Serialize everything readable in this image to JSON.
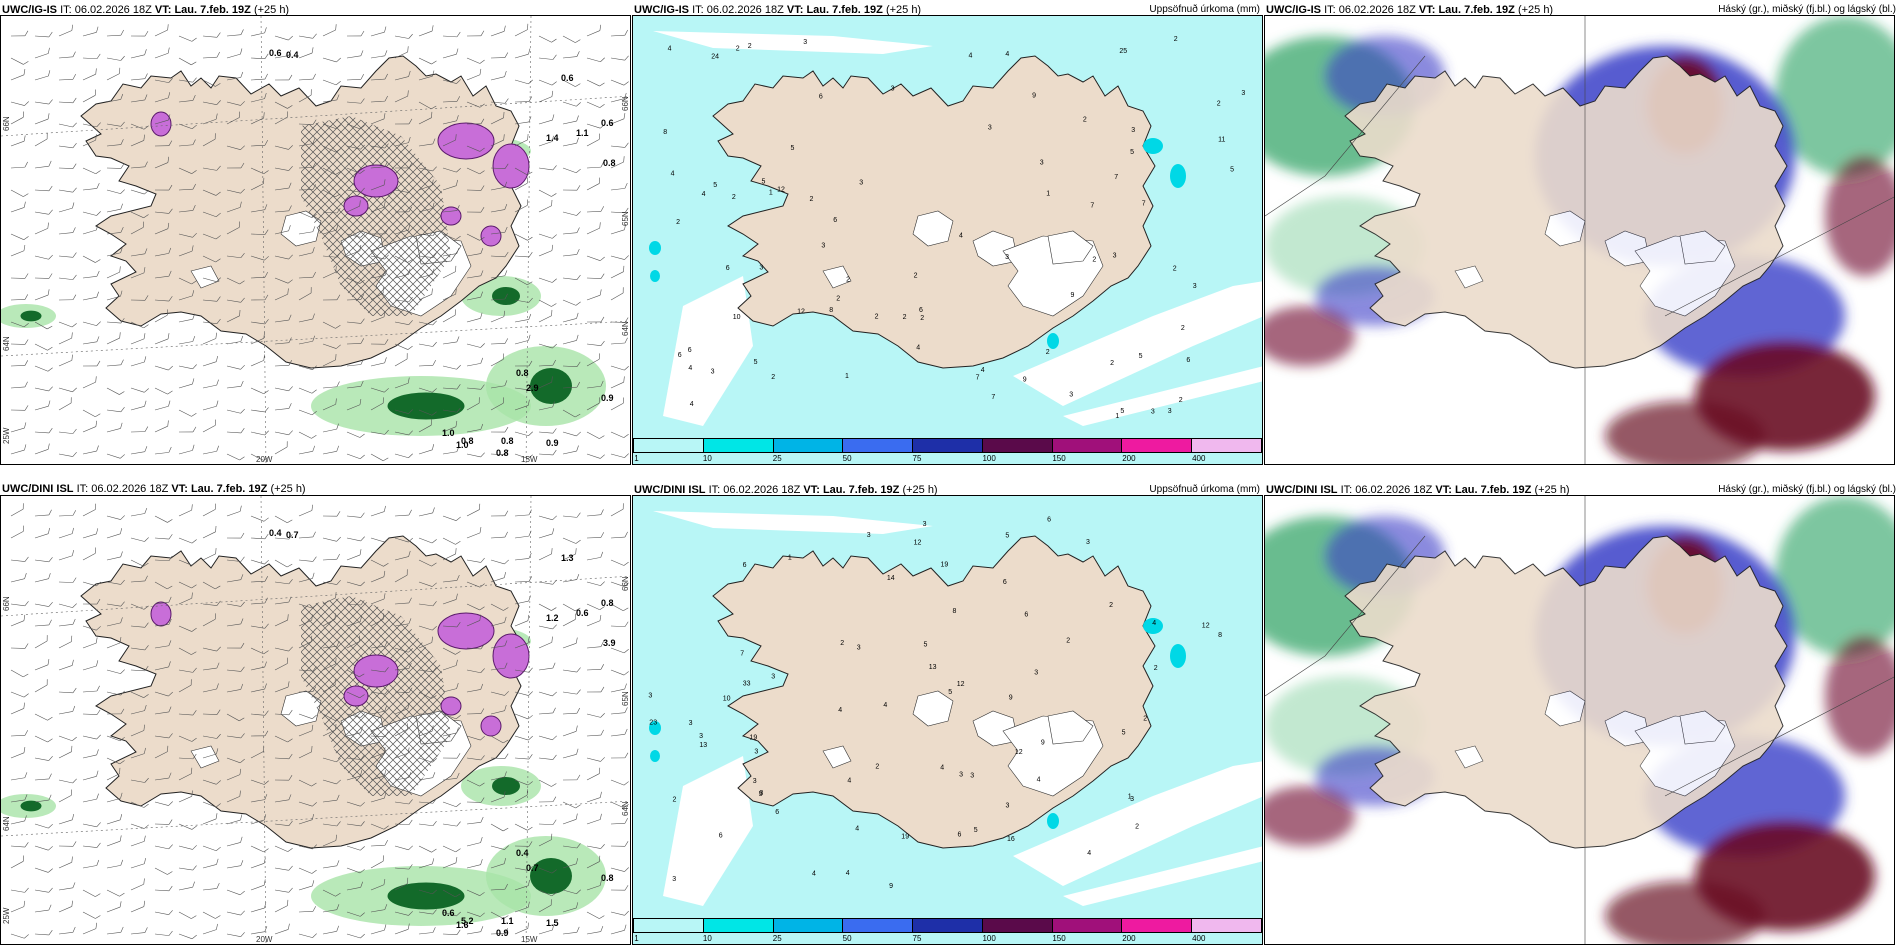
{
  "rows": [
    {
      "panels": [
        {
          "kind": "wind",
          "model": "UWC/IG-IS",
          "it_label": "IT:",
          "it_value": "06.02.2026 18Z",
          "vt_label": "VT:",
          "vt_value": "Lau. 7.feb. 19Z",
          "lead": "(+25 h)",
          "right_title": "",
          "axis": {
            "lon": [
              "20W",
              "15W"
            ],
            "lat": [
              "66N",
              "65N",
              "64N"
            ],
            "lat_left": [
              "66N",
              "64N",
              "25W"
            ]
          },
          "values": [
            "0.6",
            "0.6",
            "1.1",
            "0.8",
            "0.9",
            "1.0",
            "0.8",
            "1.0",
            "0.8",
            "0.8",
            "0.9",
            "2.9",
            "0.4",
            "0.6",
            "1.4",
            "0.8"
          ]
        },
        {
          "kind": "precip",
          "model": "UWC/IG-IS",
          "it_label": "IT:",
          "it_value": "06.02.2026 18Z",
          "vt_label": "VT:",
          "vt_value": "Lau. 7.feb. 19Z",
          "lead": "(+25 h)",
          "right_title": "Uppsöfnuð úrkoma (mm)",
          "values": [
            "2",
            "1",
            "2",
            "3",
            "3",
            "6",
            "2",
            "3",
            "8",
            "7",
            "7",
            "4",
            "4",
            "5",
            "6",
            "2",
            "4",
            "5",
            "2",
            "3",
            "3",
            "12",
            "9",
            "12",
            "5",
            "1",
            "7",
            "6",
            "3",
            "6",
            "2",
            "2",
            "3",
            "2",
            "2",
            "4",
            "5",
            "2",
            "3",
            "1",
            "2",
            "2",
            "2",
            "3",
            "2",
            "4",
            "6",
            "5",
            "3",
            "9",
            "7",
            "7",
            "3",
            "25",
            "11",
            "3",
            "2",
            "24",
            "10",
            "5",
            "4",
            "3",
            "8",
            "2",
            "2",
            "4",
            "2",
            "3",
            "9",
            "2",
            "6",
            "5",
            "4",
            "5",
            "6",
            "4",
            "3",
            "2",
            "3",
            "1",
            "2",
            "4"
          ]
        },
        {
          "kind": "cloud",
          "model": "UWC/IG-IS",
          "it_label": "IT:",
          "it_value": "06.02.2026 18Z",
          "vt_label": "VT:",
          "vt_value": "Lau. 7.feb. 19Z",
          "lead": "(+25 h)",
          "right_title": "Háský (gr.), miðský (fj.bl.) og lágský (bl.)"
        }
      ]
    },
    {
      "panels": [
        {
          "kind": "wind",
          "model": "UWC/DINI ISL",
          "it_label": "IT:",
          "it_value": "06.02.2026 18Z",
          "vt_label": "VT:",
          "vt_value": "Lau. 7.feb. 19Z",
          "lead": "(+25 h)",
          "right_title": "",
          "axis": {
            "lon": [
              "20W",
              "15W"
            ],
            "lat": [
              "66N",
              "65N",
              "64N"
            ],
            "lat_left": [
              "66N",
              "64N",
              "25W"
            ]
          },
          "values": [
            "0.4",
            "1.3",
            "0.6",
            "3.9",
            "0.8",
            "0.6",
            "5.2",
            "1.6",
            "0.9",
            "1.1",
            "1.5",
            "0.7",
            "0.7",
            "0.8",
            "1.2",
            "0.4"
          ]
        },
        {
          "kind": "precip",
          "model": "UWC/DINI ISL",
          "it_label": "IT:",
          "it_value": "06.02.2026 18Z",
          "vt_label": "VT:",
          "vt_value": "Lau. 7.feb. 19Z",
          "lead": "(+25 h)",
          "right_title": "Uppsöfnuð úrkoma (mm)",
          "values": [
            "6",
            "3",
            "1",
            "2",
            "3",
            "3",
            "3",
            "3",
            "4",
            "2",
            "3",
            "3",
            "4",
            "5",
            "9",
            "3",
            "2",
            "3",
            "5",
            "4",
            "16",
            "12",
            "14",
            "12",
            "13",
            "4",
            "3",
            "5",
            "8",
            "9",
            "7",
            "6",
            "5",
            "4",
            "3",
            "13",
            "12",
            "9",
            "6",
            "5",
            "8",
            "19",
            "19",
            "19",
            "23",
            "33",
            "12",
            "6",
            "4",
            "3",
            "3",
            "4",
            "5",
            "2",
            "4",
            "3",
            "2",
            "1",
            "6",
            "10",
            "3",
            "6",
            "6",
            "4",
            "2",
            "2",
            "3",
            "3",
            "2",
            "4"
          ]
        },
        {
          "kind": "cloud",
          "model": "UWC/DINI ISL",
          "it_label": "IT:",
          "it_value": "06.02.2026 18Z",
          "vt_label": "VT:",
          "vt_value": "Lau. 7.feb. 19Z",
          "lead": "(+25 h)",
          "right_title": "Háský (gr.), miðský (fj.bl.) og lágský (bl.)"
        }
      ]
    }
  ],
  "colorbar": {
    "ticks": [
      "1",
      "10",
      "25",
      "50",
      "75",
      "100",
      "150",
      "200",
      "400"
    ],
    "colors": [
      "#b8f6f6",
      "#00e6e6",
      "#00b4e6",
      "#3a6cf0",
      "#1e2fa8",
      "#5a0a4a",
      "#a0107a",
      "#ee1aa0",
      "#f0b8ee"
    ]
  },
  "colors": {
    "land": "#ecdccb",
    "precip_bg": "#b8f6f6",
    "sea": "#ffffff",
    "wind_fill": "#c86ed8",
    "hatch": "#555555",
    "green_light": "#a8e4a8",
    "green_dark": "#136a2a",
    "cloud_high": "#6a0a24",
    "cloud_mid": "#3a3ec8",
    "cloud_low": "#28a060"
  }
}
